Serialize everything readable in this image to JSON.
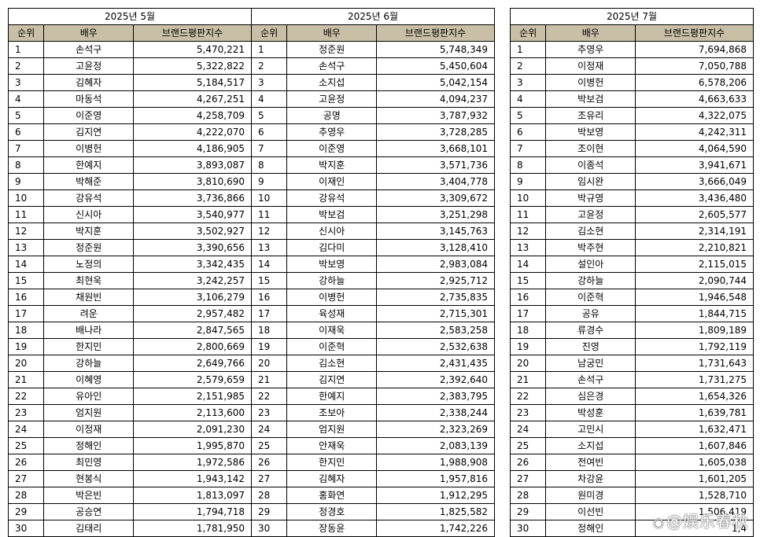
{
  "columns": {
    "rank": "순위",
    "actor": "배우",
    "index": "브랜드평판지수"
  },
  "months": [
    {
      "title": "2025년 5월",
      "rows": [
        {
          "rank": "1",
          "actor": "손석구",
          "index": "5,470,221"
        },
        {
          "rank": "2",
          "actor": "고윤정",
          "index": "5,322,822"
        },
        {
          "rank": "3",
          "actor": "김혜자",
          "index": "5,184,517"
        },
        {
          "rank": "4",
          "actor": "마동석",
          "index": "4,267,251"
        },
        {
          "rank": "5",
          "actor": "이준영",
          "index": "4,258,709"
        },
        {
          "rank": "6",
          "actor": "김지연",
          "index": "4,222,070"
        },
        {
          "rank": "7",
          "actor": "이병헌",
          "index": "4,186,905"
        },
        {
          "rank": "8",
          "actor": "한예지",
          "index": "3,893,087"
        },
        {
          "rank": "9",
          "actor": "박해준",
          "index": "3,810,690"
        },
        {
          "rank": "10",
          "actor": "강유석",
          "index": "3,736,866"
        },
        {
          "rank": "11",
          "actor": "신시아",
          "index": "3,540,977"
        },
        {
          "rank": "12",
          "actor": "박지훈",
          "index": "3,502,927"
        },
        {
          "rank": "13",
          "actor": "정준원",
          "index": "3,390,656"
        },
        {
          "rank": "14",
          "actor": "노정의",
          "index": "3,342,435"
        },
        {
          "rank": "15",
          "actor": "최현욱",
          "index": "3,242,257"
        },
        {
          "rank": "16",
          "actor": "채원빈",
          "index": "3,106,279"
        },
        {
          "rank": "17",
          "actor": "려운",
          "index": "2,957,482"
        },
        {
          "rank": "18",
          "actor": "배나라",
          "index": "2,847,565"
        },
        {
          "rank": "19",
          "actor": "한지민",
          "index": "2,800,669"
        },
        {
          "rank": "20",
          "actor": "강하늘",
          "index": "2,649,766"
        },
        {
          "rank": "21",
          "actor": "이혜영",
          "index": "2,579,659"
        },
        {
          "rank": "22",
          "actor": "유아인",
          "index": "2,151,985"
        },
        {
          "rank": "23",
          "actor": "엄지원",
          "index": "2,113,600"
        },
        {
          "rank": "24",
          "actor": "이정재",
          "index": "2,091,230"
        },
        {
          "rank": "25",
          "actor": "정해인",
          "index": "1,995,870"
        },
        {
          "rank": "26",
          "actor": "최민영",
          "index": "1,972,586"
        },
        {
          "rank": "27",
          "actor": "현봉식",
          "index": "1,943,142"
        },
        {
          "rank": "28",
          "actor": "박은빈",
          "index": "1,813,097"
        },
        {
          "rank": "29",
          "actor": "공승연",
          "index": "1,794,718"
        },
        {
          "rank": "30",
          "actor": "김태리",
          "index": "1,781,950"
        }
      ]
    },
    {
      "title": "2025년 6월",
      "rows": [
        {
          "rank": "1",
          "actor": "정준원",
          "index": "5,748,349"
        },
        {
          "rank": "2",
          "actor": "손석구",
          "index": "5,450,604"
        },
        {
          "rank": "3",
          "actor": "소지섭",
          "index": "5,042,154"
        },
        {
          "rank": "4",
          "actor": "고윤정",
          "index": "4,094,237"
        },
        {
          "rank": "5",
          "actor": "공명",
          "index": "3,787,932"
        },
        {
          "rank": "6",
          "actor": "추영우",
          "index": "3,728,285"
        },
        {
          "rank": "7",
          "actor": "이준영",
          "index": "3,668,101"
        },
        {
          "rank": "8",
          "actor": "박지훈",
          "index": "3,571,736"
        },
        {
          "rank": "9",
          "actor": "이재인",
          "index": "3,404,778"
        },
        {
          "rank": "10",
          "actor": "강유석",
          "index": "3,309,672"
        },
        {
          "rank": "11",
          "actor": "박보검",
          "index": "3,251,298"
        },
        {
          "rank": "12",
          "actor": "신시아",
          "index": "3,145,763"
        },
        {
          "rank": "13",
          "actor": "김다미",
          "index": "3,128,410"
        },
        {
          "rank": "14",
          "actor": "박보영",
          "index": "2,983,084"
        },
        {
          "rank": "15",
          "actor": "강하늘",
          "index": "2,925,712"
        },
        {
          "rank": "16",
          "actor": "이병헌",
          "index": "2,735,835"
        },
        {
          "rank": "17",
          "actor": "육성재",
          "index": "2,715,301"
        },
        {
          "rank": "18",
          "actor": "이재욱",
          "index": "2,583,258"
        },
        {
          "rank": "19",
          "actor": "이준혁",
          "index": "2,532,638"
        },
        {
          "rank": "20",
          "actor": "김소현",
          "index": "2,431,435"
        },
        {
          "rank": "21",
          "actor": "김지연",
          "index": "2,392,640"
        },
        {
          "rank": "22",
          "actor": "한예지",
          "index": "2,383,795"
        },
        {
          "rank": "23",
          "actor": "조보아",
          "index": "2,338,244"
        },
        {
          "rank": "24",
          "actor": "엄지원",
          "index": "2,323,269"
        },
        {
          "rank": "25",
          "actor": "안재욱",
          "index": "2,083,139"
        },
        {
          "rank": "26",
          "actor": "한지민",
          "index": "1,988,908"
        },
        {
          "rank": "27",
          "actor": "김혜자",
          "index": "1,957,816"
        },
        {
          "rank": "28",
          "actor": "홍화연",
          "index": "1,912,295"
        },
        {
          "rank": "29",
          "actor": "정경호",
          "index": "1,825,582"
        },
        {
          "rank": "30",
          "actor": "장동윤",
          "index": "1,742,226"
        }
      ]
    },
    {
      "title": "2025년 7월",
      "rows": [
        {
          "rank": "1",
          "actor": "추영우",
          "index": "7,694,868"
        },
        {
          "rank": "2",
          "actor": "이정재",
          "index": "7,050,788"
        },
        {
          "rank": "3",
          "actor": "이병헌",
          "index": "6,578,206"
        },
        {
          "rank": "4",
          "actor": "박보검",
          "index": "4,663,633"
        },
        {
          "rank": "5",
          "actor": "조유리",
          "index": "4,322,075"
        },
        {
          "rank": "6",
          "actor": "박보영",
          "index": "4,242,311"
        },
        {
          "rank": "7",
          "actor": "조이현",
          "index": "4,064,590"
        },
        {
          "rank": "8",
          "actor": "이종석",
          "index": "3,941,671"
        },
        {
          "rank": "9",
          "actor": "임시완",
          "index": "3,666,049"
        },
        {
          "rank": "10",
          "actor": "박규영",
          "index": "3,436,480"
        },
        {
          "rank": "11",
          "actor": "고윤정",
          "index": "2,605,577"
        },
        {
          "rank": "12",
          "actor": "김소현",
          "index": "2,314,191"
        },
        {
          "rank": "13",
          "actor": "박주현",
          "index": "2,210,821"
        },
        {
          "rank": "14",
          "actor": "설인아",
          "index": "2,115,015"
        },
        {
          "rank": "15",
          "actor": "강하늘",
          "index": "2,090,744"
        },
        {
          "rank": "16",
          "actor": "이준혁",
          "index": "1,946,548"
        },
        {
          "rank": "17",
          "actor": "공유",
          "index": "1,844,715"
        },
        {
          "rank": "18",
          "actor": "류경수",
          "index": "1,809,189"
        },
        {
          "rank": "19",
          "actor": "진영",
          "index": "1,792,119"
        },
        {
          "rank": "20",
          "actor": "남궁민",
          "index": "1,731,643"
        },
        {
          "rank": "21",
          "actor": "손석구",
          "index": "1,731,275"
        },
        {
          "rank": "22",
          "actor": "심은경",
          "index": "1,654,326"
        },
        {
          "rank": "23",
          "actor": "박성훈",
          "index": "1,639,781"
        },
        {
          "rank": "24",
          "actor": "고민시",
          "index": "1,632,471"
        },
        {
          "rank": "25",
          "actor": "소지섭",
          "index": "1,607,846"
        },
        {
          "rank": "26",
          "actor": "전여빈",
          "index": "1,605,038"
        },
        {
          "rank": "27",
          "actor": "차강윤",
          "index": "1,601,205"
        },
        {
          "rank": "28",
          "actor": "원미경",
          "index": "1,528,710"
        },
        {
          "rank": "29",
          "actor": "이선빈",
          "index": "1,506,419"
        },
        {
          "rank": "30",
          "actor": "정해인",
          "index": "1,4"
        }
      ]
    }
  ],
  "watermark": {
    "text": "@娱乐春秋"
  },
  "colors": {
    "header_bg": "#c9bfa6",
    "border": "#000000"
  }
}
